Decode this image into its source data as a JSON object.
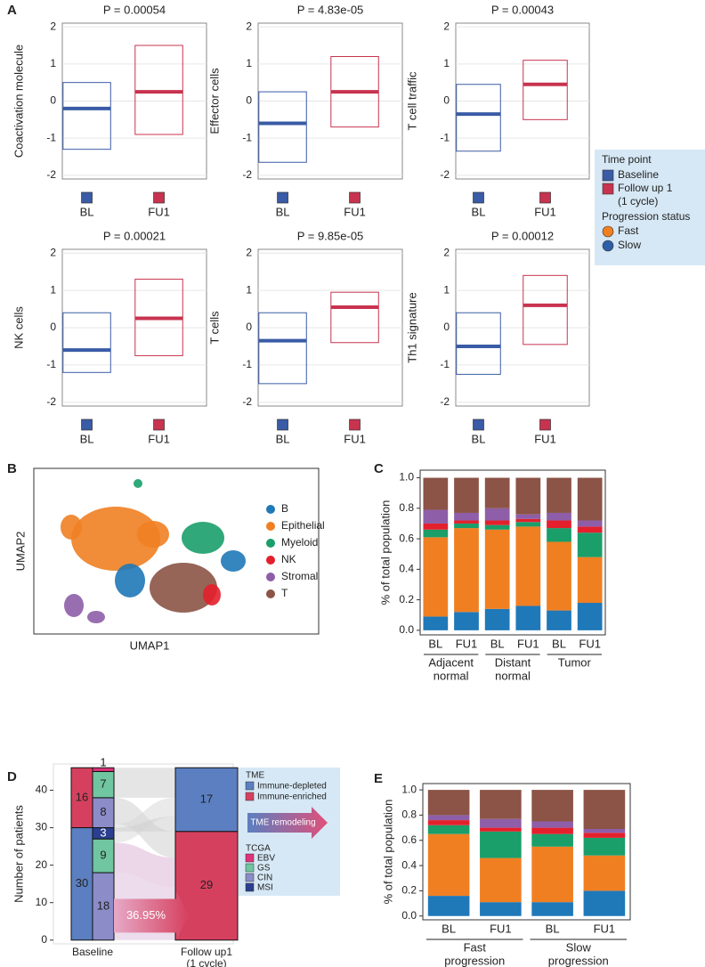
{
  "shared_legend": {
    "time_title": "Time point",
    "time_items": [
      {
        "lines": [
          "Baseline"
        ],
        "color": "#3a5ba6"
      },
      {
        "lines": [
          "Follow up 1",
          "(1 cycle)"
        ],
        "color": "#c8334f"
      }
    ],
    "progression_title": "Progression status",
    "progression_items": [
      {
        "name": "Fast",
        "color": "#f07f22"
      },
      {
        "name": "Slow",
        "color": "#2d5fa8"
      }
    ]
  },
  "chart_data": [
    {
      "type": "box",
      "panel": "A",
      "title": "P = 0.00054",
      "ylabel": "Coactivation molecule",
      "categories": [
        "BL",
        "FU1"
      ],
      "colors": [
        "#3a5ba6",
        "#c8334f"
      ],
      "q1": [
        -1.3,
        -0.9
      ],
      "median": [
        -0.2,
        0.25
      ],
      "q3": [
        0.5,
        1.5
      ],
      "ylim": [
        -2.1,
        2.1
      ],
      "yticks": [
        -2,
        -1,
        0,
        1,
        2
      ],
      "grid": true
    },
    {
      "type": "box",
      "title": "P = 4.83e-05",
      "ylabel": "Effector cells",
      "categories": [
        "BL",
        "FU1"
      ],
      "colors": [
        "#3a5ba6",
        "#c8334f"
      ],
      "q1": [
        -1.65,
        -0.7
      ],
      "median": [
        -0.6,
        0.25
      ],
      "q3": [
        0.25,
        1.2
      ],
      "ylim": [
        -2.1,
        2.1
      ],
      "yticks": [
        -2,
        -1,
        0,
        1,
        2
      ],
      "grid": true
    },
    {
      "type": "box",
      "title": "P = 0.00043",
      "ylabel": "T cell traffic",
      "categories": [
        "BL",
        "FU1"
      ],
      "colors": [
        "#3a5ba6",
        "#c8334f"
      ],
      "q1": [
        -1.35,
        -0.5
      ],
      "median": [
        -0.35,
        0.45
      ],
      "q3": [
        0.45,
        1.1
      ],
      "ylim": [
        -2.1,
        2.1
      ],
      "yticks": [
        -2,
        -1,
        0,
        1,
        2
      ],
      "grid": true
    },
    {
      "type": "box",
      "title": "P = 0.00021",
      "ylabel": "NK cells",
      "categories": [
        "BL",
        "FU1"
      ],
      "colors": [
        "#3a5ba6",
        "#c8334f"
      ],
      "q1": [
        -1.2,
        -0.75
      ],
      "median": [
        -0.6,
        0.25
      ],
      "q3": [
        0.4,
        1.3
      ],
      "ylim": [
        -2.1,
        2.1
      ],
      "yticks": [
        -2,
        -1,
        0,
        1,
        2
      ],
      "grid": true
    },
    {
      "type": "box",
      "title": "P = 9.85e-05",
      "ylabel": "T cells",
      "categories": [
        "BL",
        "FU1"
      ],
      "colors": [
        "#3a5ba6",
        "#c8334f"
      ],
      "q1": [
        -1.5,
        -0.4
      ],
      "median": [
        -0.35,
        0.55
      ],
      "q3": [
        0.4,
        0.95
      ],
      "ylim": [
        -2.1,
        2.1
      ],
      "yticks": [
        -2,
        -1,
        0,
        1,
        2
      ],
      "grid": true
    },
    {
      "type": "box",
      "title": "P = 0.00012",
      "ylabel": "Th1 signature",
      "categories": [
        "BL",
        "FU1"
      ],
      "colors": [
        "#3a5ba6",
        "#c8334f"
      ],
      "q1": [
        -1.25,
        -0.45
      ],
      "median": [
        -0.5,
        0.6
      ],
      "q3": [
        0.4,
        1.4
      ],
      "ylim": [
        -2.1,
        2.1
      ],
      "yticks": [
        -2,
        -1,
        0,
        1,
        2
      ],
      "grid": true
    },
    {
      "type": "scatter",
      "panel": "B",
      "xlabel": "UMAP1",
      "ylabel": "UMAP2",
      "legend": "right",
      "series": [
        {
          "name": "B",
          "color": "#1f78b8"
        },
        {
          "name": "Epithelial",
          "color": "#f07f22"
        },
        {
          "name": "Myeloid",
          "color": "#1a9e6a"
        },
        {
          "name": "NK",
          "color": "#e3202c"
        },
        {
          "name": "Stromal",
          "color": "#8e5ea8"
        },
        {
          "name": "T",
          "color": "#8b5446"
        }
      ]
    },
    {
      "type": "stacked_bar",
      "panel": "C",
      "ylabel": "% of total population",
      "categories": [
        "BL",
        "FU1",
        "BL",
        "FU1",
        "BL",
        "FU1"
      ],
      "group_labels": [
        [
          "Adjacent",
          "normal"
        ],
        [
          "Distant",
          "normal"
        ],
        [
          "Tumor"
        ]
      ],
      "series": [
        {
          "color": "#1f78b8",
          "values": [
            0.09,
            0.12,
            0.14,
            0.16,
            0.13,
            0.18
          ]
        },
        {
          "color": "#f07f22",
          "values": [
            0.52,
            0.55,
            0.52,
            0.52,
            0.45,
            0.3
          ]
        },
        {
          "color": "#1a9e6a",
          "values": [
            0.05,
            0.03,
            0.03,
            0.03,
            0.09,
            0.16
          ]
        },
        {
          "color": "#e3202c",
          "values": [
            0.04,
            0.02,
            0.03,
            0.02,
            0.05,
            0.04
          ]
        },
        {
          "color": "#8e5ea8",
          "values": [
            0.09,
            0.05,
            0.08,
            0.03,
            0.05,
            0.04
          ]
        },
        {
          "color": "#8b5446",
          "values": [
            0.21,
            0.23,
            0.2,
            0.24,
            0.23,
            0.28
          ]
        }
      ],
      "ylim": [
        -0.03,
        1.05
      ],
      "yticks": [
        {
          "value": 0,
          "label": "0.0"
        },
        {
          "value": 0.2,
          "label": "0.2"
        },
        {
          "value": 0.4,
          "label": "0.4"
        },
        {
          "value": 0.6,
          "label": "0.6"
        },
        {
          "value": 0.8,
          "label": "0.8"
        },
        {
          "value": 1,
          "label": "1.0"
        }
      ]
    },
    {
      "type": "alluvial",
      "panel": "D",
      "ylabel": "Number of patients",
      "x_labels": [
        [
          "Baseline"
        ],
        [
          "Follow up1",
          "(1 cycle)"
        ]
      ],
      "tme_title": "TME",
      "tme_series": [
        {
          "name": "Immune-depleted",
          "color": "#5b7fc0",
          "values": [
            30,
            17
          ]
        },
        {
          "name": "Immune-enriched",
          "color": "#d6405f",
          "values": [
            16,
            29
          ]
        }
      ],
      "tcga_title": "TCGA",
      "tcga_legend": [
        {
          "name": "EBV",
          "color": "#e0337a"
        },
        {
          "name": "GS",
          "color": "#6fc6a0"
        },
        {
          "name": "CIN",
          "color": "#8b8cc8"
        },
        {
          "name": "MSI",
          "color": "#2a3f8f"
        }
      ],
      "tcga_stack_values": [
        18,
        9,
        3,
        8,
        7,
        1
      ],
      "tcga_stack_colors": [
        "#8b8cc8",
        "#6fc6a0",
        "#2a3f8f",
        "#8b8cc8",
        "#6fc6a0",
        "#e0337a"
      ],
      "remodeling_label": "TME remodeling",
      "shift_label": "36.95%",
      "ylim": [
        -1,
        47
      ],
      "yticks": [
        0,
        10,
        20,
        30,
        40
      ]
    },
    {
      "type": "stacked_bar",
      "panel": "E",
      "ylabel": "% of total population",
      "categories": [
        "BL",
        "FU1",
        "BL",
        "FU1"
      ],
      "group_labels": [
        [
          "Fast",
          "progression"
        ],
        [
          "Slow",
          "progression"
        ]
      ],
      "series": [
        {
          "color": "#1f78b8",
          "values": [
            0.16,
            0.11,
            0.11,
            0.2
          ]
        },
        {
          "color": "#f07f22",
          "values": [
            0.49,
            0.35,
            0.44,
            0.28
          ]
        },
        {
          "color": "#1a9e6a",
          "values": [
            0.07,
            0.21,
            0.1,
            0.14
          ]
        },
        {
          "color": "#e3202c",
          "values": [
            0.04,
            0.03,
            0.05,
            0.04
          ]
        },
        {
          "color": "#8e5ea8",
          "values": [
            0.04,
            0.07,
            0.05,
            0.03
          ]
        },
        {
          "color": "#8b5446",
          "values": [
            0.2,
            0.23,
            0.25,
            0.31
          ]
        }
      ],
      "ylim": [
        -0.03,
        1.05
      ],
      "yticks": [
        {
          "value": 0,
          "label": "0.0"
        },
        {
          "value": 0.2,
          "label": "0.2"
        },
        {
          "value": 0.4,
          "label": "0.4"
        },
        {
          "value": 0.6,
          "label": "0.6"
        },
        {
          "value": 0.8,
          "label": "0.8"
        },
        {
          "value": 1,
          "label": "1.0"
        }
      ]
    }
  ]
}
